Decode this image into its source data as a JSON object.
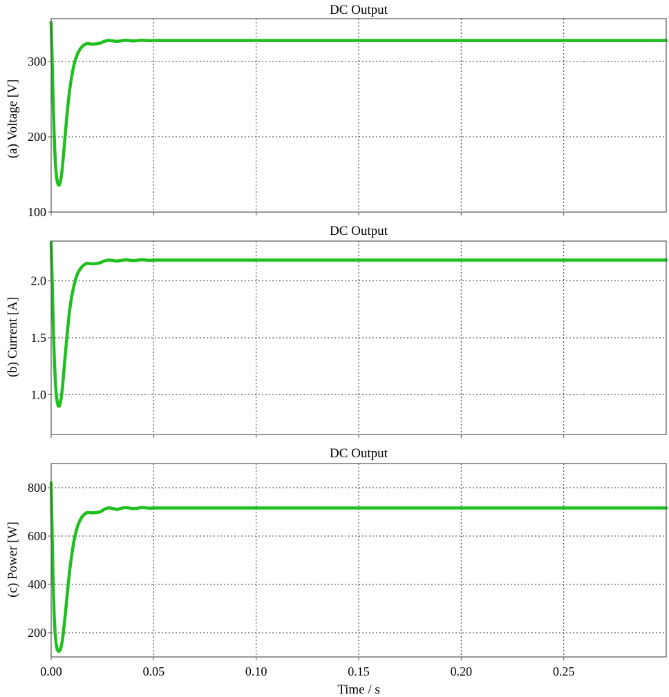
{
  "figure": {
    "xlabel": "Time / s",
    "xlim": [
      0,
      0.3
    ],
    "xticks": [
      0,
      0.05,
      0.1,
      0.15,
      0.2,
      0.25
    ],
    "xtick_labels": [
      "0.00",
      "0.05",
      "0.10",
      "0.15",
      "0.20",
      "0.25"
    ],
    "line_color": "#1fbf1f"
  },
  "chart_data": [
    {
      "type": "line",
      "title": "DC Output",
      "xlabel": "",
      "ylabel": "(a) Voltage [V]",
      "ylim": [
        100,
        357
      ],
      "yticks": [
        100,
        200,
        300
      ],
      "ytick_labels": [
        "100",
        "200",
        "300"
      ],
      "grid": true,
      "series": [
        {
          "color": "#1fbf1f",
          "x": [
            0,
            0.0005,
            0.001,
            0.0015,
            0.002,
            0.0025,
            0.003,
            0.0035,
            0.004,
            0.0045,
            0.005,
            0.0055,
            0.006,
            0.0065,
            0.007,
            0.008,
            0.009,
            0.01,
            0.011,
            0.012,
            0.013,
            0.014,
            0.015,
            0.016,
            0.017,
            0.018,
            0.019,
            0.02,
            0.022,
            0.024,
            0.026,
            0.028,
            0.03,
            0.032,
            0.034,
            0.036,
            0.038,
            0.04,
            0.042,
            0.044,
            0.046,
            0.048,
            0.05,
            0.055,
            0.06,
            0.07,
            0.08,
            0.1,
            0.15,
            0.2,
            0.25,
            0.3
          ],
          "y": [
            352,
            300,
            245,
            200,
            168,
            150,
            140,
            136,
            136,
            140,
            148,
            160,
            175,
            191,
            207,
            237,
            262,
            280,
            294,
            304,
            311,
            316,
            319.5,
            322,
            323.5,
            324,
            323.5,
            323,
            323.5,
            324.5,
            327,
            328.2,
            327.5,
            326.7,
            327.5,
            328.3,
            328,
            327.3,
            327.8,
            328.4,
            328.1,
            327.7,
            328,
            328,
            328,
            328,
            328,
            328,
            328,
            328,
            328,
            328
          ]
        }
      ]
    },
    {
      "type": "line",
      "title": "DC Output",
      "xlabel": "",
      "ylabel": "(b) Current [A]",
      "ylim": [
        0.65,
        2.35
      ],
      "yticks": [
        1.0,
        1.5,
        2.0
      ],
      "ytick_labels": [
        "1.0",
        "1.5",
        "2.0"
      ],
      "grid": true,
      "series": [
        {
          "color": "#1fbf1f",
          "x": [
            0,
            0.0005,
            0.001,
            0.0015,
            0.002,
            0.0025,
            0.003,
            0.0035,
            0.004,
            0.0045,
            0.005,
            0.0055,
            0.006,
            0.0065,
            0.007,
            0.008,
            0.009,
            0.01,
            0.011,
            0.012,
            0.013,
            0.014,
            0.015,
            0.016,
            0.017,
            0.018,
            0.019,
            0.02,
            0.022,
            0.024,
            0.026,
            0.028,
            0.03,
            0.032,
            0.034,
            0.036,
            0.038,
            0.04,
            0.042,
            0.044,
            0.046,
            0.048,
            0.05,
            0.055,
            0.06,
            0.07,
            0.08,
            0.1,
            0.15,
            0.2,
            0.25,
            0.3
          ],
          "y": [
            2.34,
            2.0,
            1.64,
            1.34,
            1.13,
            1.0,
            0.93,
            0.9,
            0.9,
            0.93,
            0.98,
            1.06,
            1.16,
            1.27,
            1.37,
            1.57,
            1.74,
            1.86,
            1.95,
            2.02,
            2.07,
            2.1,
            2.125,
            2.14,
            2.152,
            2.155,
            2.152,
            2.15,
            2.152,
            2.16,
            2.176,
            2.184,
            2.18,
            2.174,
            2.18,
            2.185,
            2.183,
            2.178,
            2.182,
            2.186,
            2.184,
            2.181,
            2.183,
            2.183,
            2.183,
            2.183,
            2.183,
            2.183,
            2.183,
            2.183,
            2.183,
            2.183
          ]
        }
      ]
    },
    {
      "type": "line",
      "title": "DC Output",
      "xlabel": "Time / s",
      "ylabel": "(c) Power [W]",
      "ylim": [
        100,
        900
      ],
      "yticks": [
        200,
        400,
        600,
        800
      ],
      "ytick_labels": [
        "200",
        "400",
        "600",
        "800"
      ],
      "grid": true,
      "series": [
        {
          "color": "#1fbf1f",
          "x": [
            0,
            0.0005,
            0.001,
            0.0015,
            0.002,
            0.0025,
            0.003,
            0.0035,
            0.004,
            0.0045,
            0.005,
            0.0055,
            0.006,
            0.0065,
            0.007,
            0.008,
            0.009,
            0.01,
            0.011,
            0.012,
            0.013,
            0.014,
            0.015,
            0.016,
            0.017,
            0.018,
            0.019,
            0.02,
            0.022,
            0.024,
            0.026,
            0.028,
            0.03,
            0.032,
            0.034,
            0.036,
            0.038,
            0.04,
            0.042,
            0.044,
            0.046,
            0.048,
            0.05,
            0.055,
            0.06,
            0.07,
            0.08,
            0.1,
            0.15,
            0.2,
            0.25,
            0.3
          ],
          "y": [
            820,
            600,
            400,
            268,
            190,
            150,
            130,
            124,
            124,
            130,
            146,
            170,
            204,
            242,
            284,
            372,
            455,
            520,
            573,
            614,
            644,
            664,
            679,
            688,
            695,
            698,
            697,
            696,
            697,
            700,
            711,
            717,
            714,
            710,
            714,
            718,
            716,
            713,
            715,
            718,
            717,
            715,
            716,
            716,
            716,
            716,
            716,
            716,
            716,
            716,
            716,
            716
          ]
        }
      ]
    }
  ]
}
